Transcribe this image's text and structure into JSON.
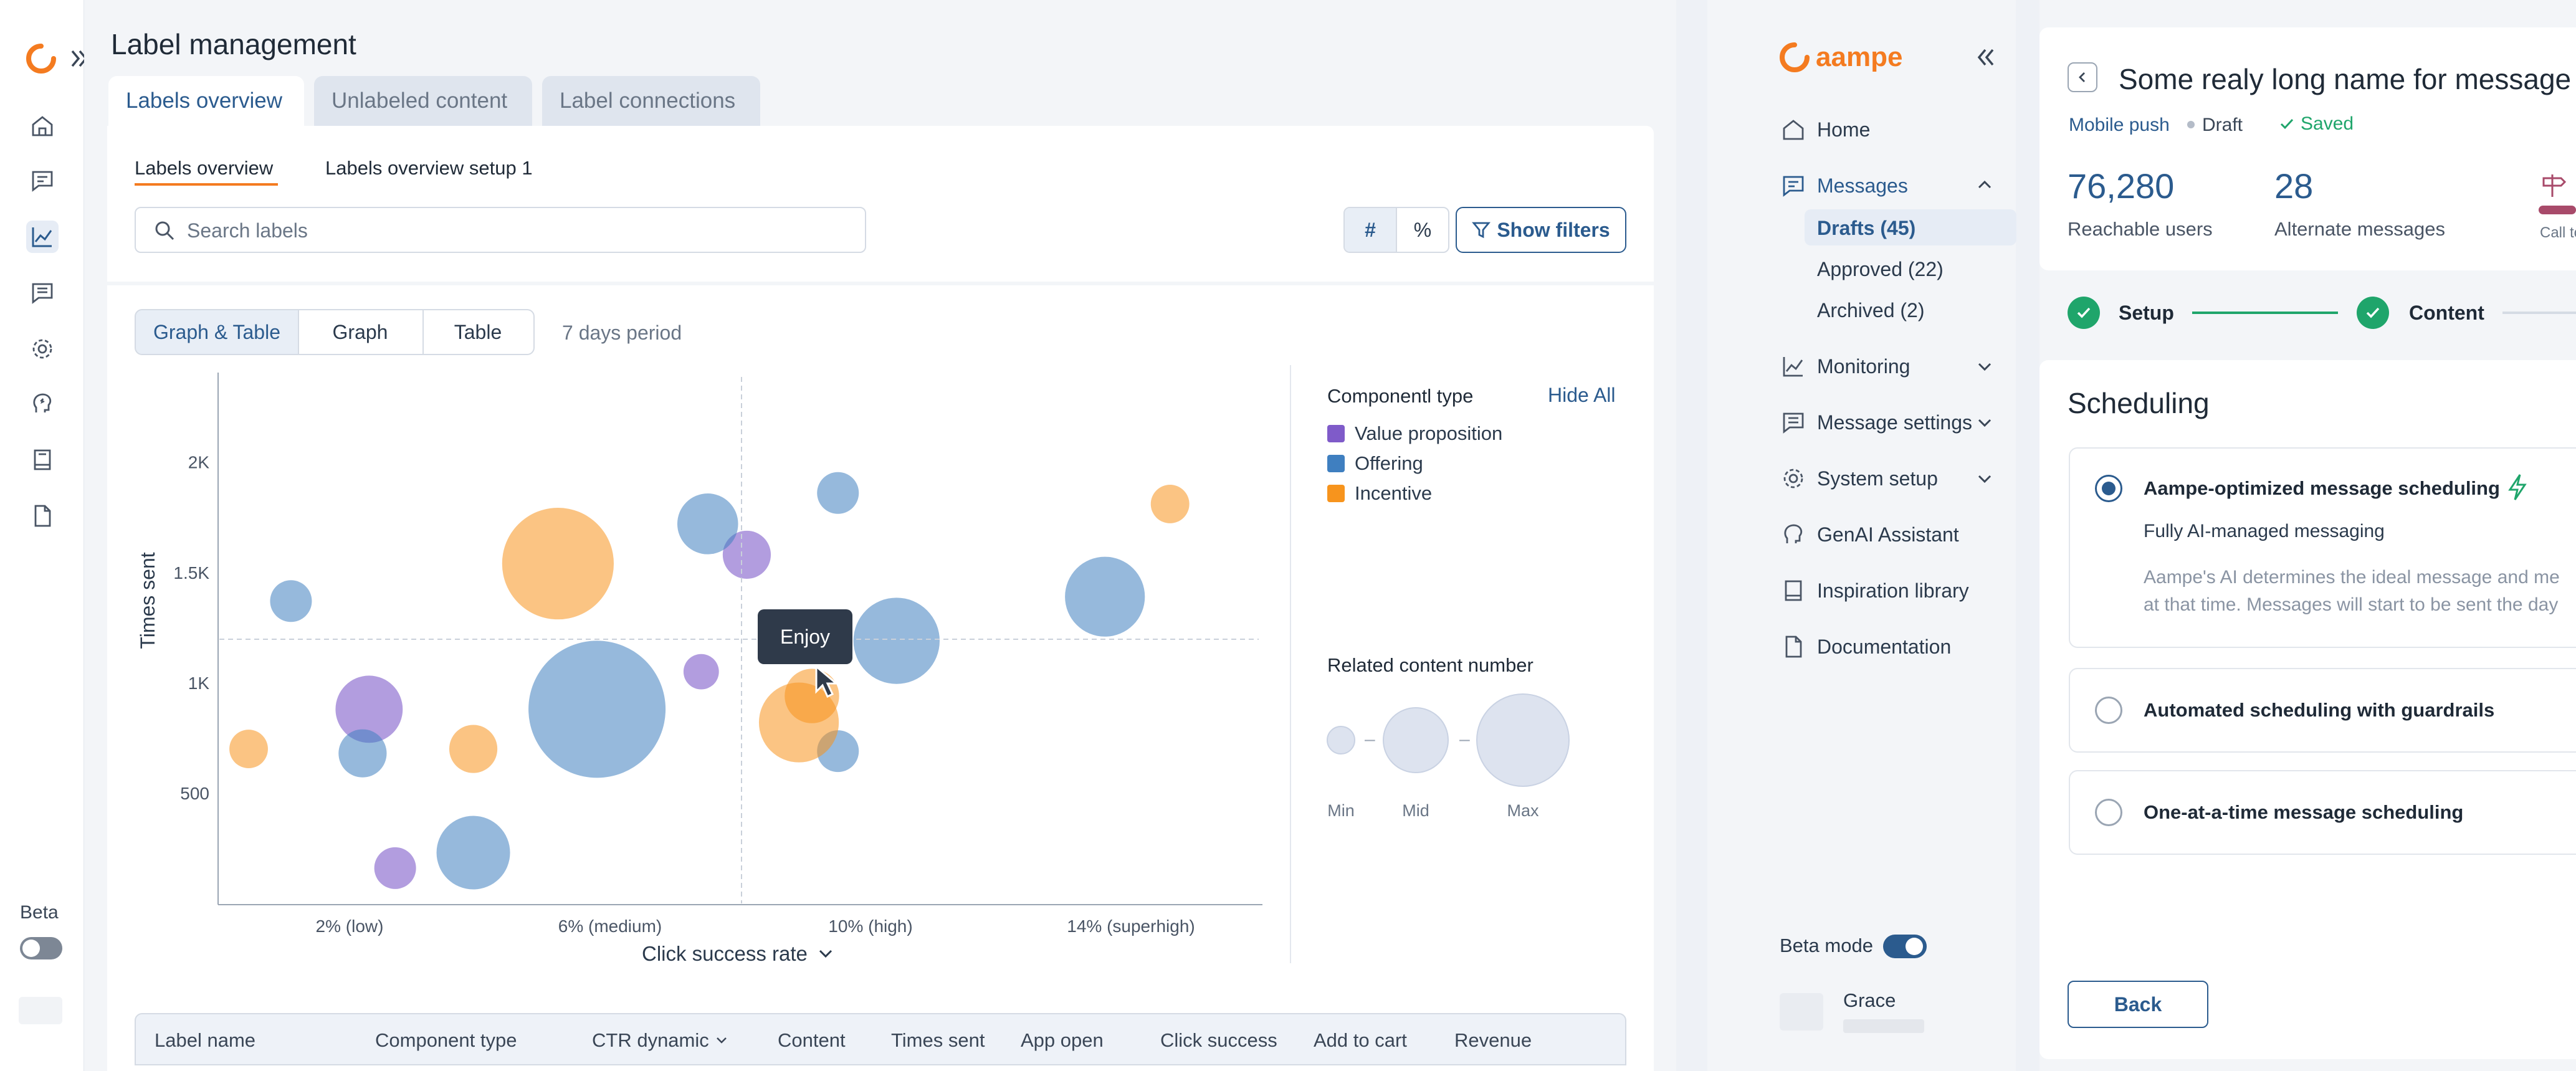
{
  "left_app": {
    "rail": {
      "beta_label": "Beta",
      "icons": [
        "home-icon",
        "messages-icon",
        "chart-icon",
        "chat-icon",
        "gear-icon",
        "genai-icon",
        "book-icon",
        "document-icon"
      ]
    },
    "page_title": "Label management",
    "tabs": [
      "Labels overview",
      "Unlabeled content",
      "Label connections"
    ],
    "subtabs": [
      "Labels overview",
      "Labels overview setup 1"
    ],
    "search_placeholder": "Search labels",
    "toggle_hash": "#",
    "toggle_percent": "%",
    "show_filters": "Show filters",
    "view_modes": [
      "Graph & Table",
      "Graph",
      "Table"
    ],
    "period": "7 days period",
    "legend_title": "Componentl type",
    "hide_all": "Hide All",
    "legend_items": [
      {
        "label": "Value proposition",
        "color": "#7f5bc9"
      },
      {
        "label": "Offering",
        "color": "#3f7fc0"
      },
      {
        "label": "Incentive",
        "color": "#f7941d"
      }
    ],
    "size_legend_title": "Related content number",
    "size_labels": [
      "Min",
      "Mid",
      "Max"
    ],
    "tooltip": "Enjoy",
    "x_axis_label": "Click success rate",
    "table_headers": [
      "Label name",
      "Component type",
      "CTR dynamic",
      "Content",
      "Times sent",
      "App open",
      "Click success",
      "Add to cart",
      "Revenue"
    ]
  },
  "chart_data": {
    "type": "scatter",
    "title": "",
    "xlabel": "Click success rate",
    "ylabel": "Times sent",
    "x_ticks": [
      "2% (low)",
      "6% (medium)",
      "10% (high)",
      "14% (superhigh)"
    ],
    "y_ticks": [
      "500",
      "1K",
      "1.5K",
      "2K"
    ],
    "xlim": [
      0,
      16
    ],
    "ylim": [
      0,
      2400
    ],
    "series": [
      {
        "name": "Value proposition",
        "color": "#7f5bc9",
        "points": [
          {
            "x": 2.3,
            "y": 880,
            "size": 18
          },
          {
            "x": 2.7,
            "y": 160,
            "size": 10
          },
          {
            "x": 7.4,
            "y": 1050,
            "size": 8
          },
          {
            "x": 8.1,
            "y": 1580,
            "size": 12
          }
        ]
      },
      {
        "name": "Offering",
        "color": "#3f7fc0",
        "points": [
          {
            "x": 1.1,
            "y": 1370,
            "size": 10
          },
          {
            "x": 2.2,
            "y": 680,
            "size": 12
          },
          {
            "x": 3.9,
            "y": 230,
            "size": 20
          },
          {
            "x": 5.8,
            "y": 880,
            "size": 40
          },
          {
            "x": 7.5,
            "y": 1720,
            "size": 16
          },
          {
            "x": 9.5,
            "y": 1860,
            "size": 10
          },
          {
            "x": 10.4,
            "y": 1190,
            "size": 24
          },
          {
            "x": 13.6,
            "y": 1390,
            "size": 22
          },
          {
            "x": 9.5,
            "y": 690,
            "size": 10
          }
        ]
      },
      {
        "name": "Incentive",
        "color": "#f7941d",
        "points": [
          {
            "x": 0.45,
            "y": 700,
            "size": 9
          },
          {
            "x": 3.9,
            "y": 700,
            "size": 12
          },
          {
            "x": 5.2,
            "y": 1540,
            "size": 32
          },
          {
            "x": 8.9,
            "y": 820,
            "size": 22
          },
          {
            "x": 9.1,
            "y": 940,
            "size": 14
          },
          {
            "x": 14.6,
            "y": 1810,
            "size": 9
          }
        ]
      }
    ]
  },
  "right_app": {
    "brand": "aampe",
    "nav": {
      "home": "Home",
      "messages": "Messages",
      "drafts": "Drafts (45)",
      "approved": "Approved (22)",
      "archived": "Archived (2)",
      "monitoring": "Monitoring",
      "message_settings": "Message settings",
      "system_setup": "System setup",
      "genai": "GenAI Assistant",
      "inspiration": "Inspiration library",
      "documentation": "Documentation"
    },
    "beta_mode": "Beta mode",
    "user_name": "Grace",
    "message": {
      "title": "Some realy long name for message",
      "channel": "Mobile push",
      "status": "Draft",
      "saved": "Saved",
      "reachable_value": "76,280",
      "reachable_label": "Reachable users",
      "alternate_value": "28",
      "alternate_label": "Alternate messages",
      "cta_label": "Call to"
    },
    "steps": [
      "Setup",
      "Content"
    ],
    "scheduling": {
      "title": "Scheduling",
      "options": [
        {
          "title": "Aampe-optimized message scheduling",
          "subtitle": "Fully AI-managed messaging",
          "desc1": "Aampe's AI determines the ideal message and me",
          "desc2": "at that time. Messages will start to be sent the day"
        },
        {
          "title": "Automated scheduling with guardrails"
        },
        {
          "title": "One-at-a-time message scheduling"
        }
      ]
    },
    "back_button": "Back"
  }
}
